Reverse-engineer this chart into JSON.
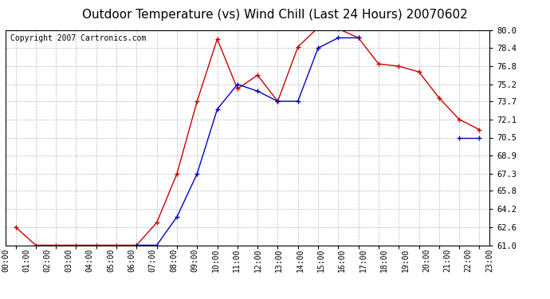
{
  "title": "Outdoor Temperature (vs) Wind Chill (Last 24 Hours) 20070602",
  "copyright": "Copyright 2007 Cartronics.com",
  "x_labels": [
    "00:00",
    "01:00",
    "02:00",
    "03:00",
    "04:00",
    "05:00",
    "06:00",
    "07:00",
    "08:00",
    "09:00",
    "10:00",
    "11:00",
    "12:00",
    "13:00",
    "14:00",
    "15:00",
    "16:00",
    "17:00",
    "18:00",
    "19:00",
    "20:00",
    "21:00",
    "22:00",
    "23:00"
  ],
  "outdoor_temp": [
    62.6,
    61.0,
    61.0,
    61.0,
    61.0,
    61.0,
    61.0,
    63.0,
    67.3,
    73.7,
    79.2,
    74.8,
    76.0,
    73.7,
    78.5,
    80.2,
    80.1,
    79.3,
    77.0,
    76.8,
    76.3,
    74.0,
    72.1,
    71.2
  ],
  "wind_chill": [
    null,
    null,
    null,
    null,
    null,
    null,
    61.0,
    61.0,
    63.5,
    67.3,
    73.0,
    75.2,
    74.6,
    73.7,
    73.7,
    78.4,
    79.3,
    79.3,
    null,
    null,
    null,
    null,
    70.5,
    70.5
  ],
  "ylim": [
    61.0,
    80.0
  ],
  "yticks": [
    61.0,
    62.6,
    64.2,
    65.8,
    67.3,
    68.9,
    70.5,
    72.1,
    73.7,
    75.2,
    76.8,
    78.4,
    80.0
  ],
  "temp_color": "#cc0000",
  "chill_color": "#0000cc",
  "bg_color": "#ffffff",
  "plot_bg": "#ffffff",
  "grid_color": "#bbbbbb",
  "title_fontsize": 11,
  "copyright_fontsize": 7
}
